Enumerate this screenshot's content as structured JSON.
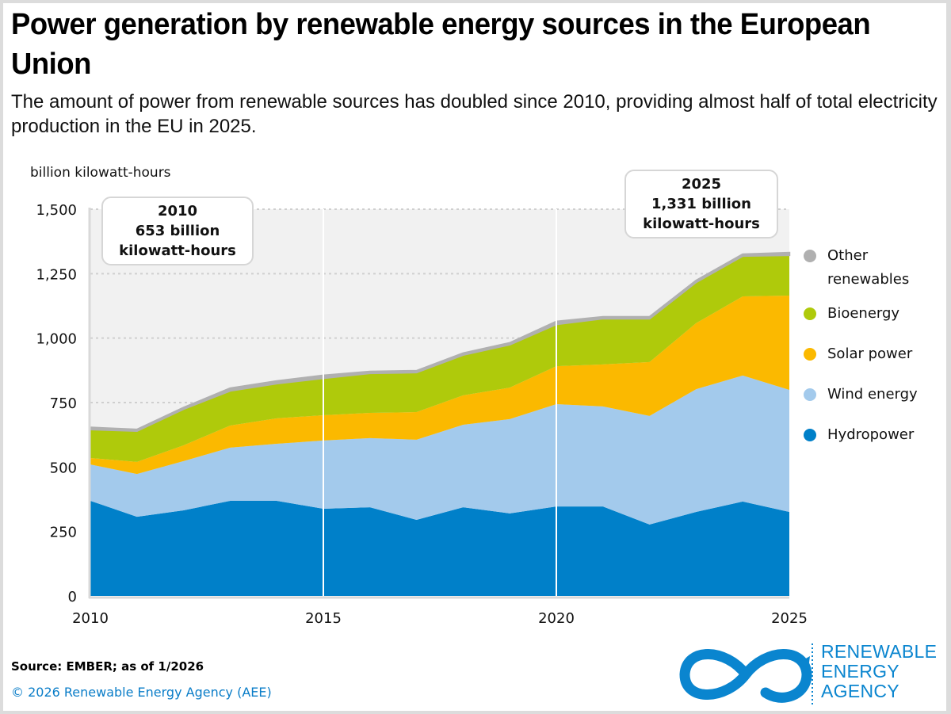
{
  "header": {
    "title": "Power generation by renewable energy sources in the European Union",
    "subtitle": "The amount of power from renewable sources has doubled since 2010, providing almost half of total electricity production in the EU in 2025."
  },
  "callouts": {
    "left": {
      "line1": "2010",
      "line2": "653 billion",
      "line3": "kilowatt-hours"
    },
    "right": {
      "line1": "2025",
      "line2": "1,331 billion",
      "line3": "kilowatt-hours"
    }
  },
  "legend": {
    "items": [
      {
        "label": "Other renewables",
        "color": "#b0b0b0"
      },
      {
        "label": "Bioenergy",
        "color": "#afca0b"
      },
      {
        "label": "Solar power",
        "color": "#fbb900"
      },
      {
        "label": "Wind energy",
        "color": "#a3caec"
      },
      {
        "label": "Hydropower",
        "color": "#0080c9"
      }
    ]
  },
  "footer": {
    "source": "Source: EMBER; as of 1/2026",
    "copyright": "© 2026 Renewable Energy Agency (AEE)"
  },
  "logo": {
    "line1": "RENEWABLE",
    "line2": "ENERGY",
    "line3": "AGENCY",
    "color": "#0a85cf"
  },
  "chart_data": {
    "type": "area",
    "stacked": true,
    "title": "Power generation by renewable energy sources in the European Union",
    "ylabel": "billion kilowatt-hours",
    "xlabel": "",
    "ylim": [
      0,
      1500
    ],
    "yticks": [
      0,
      250,
      500,
      750,
      1000,
      1250,
      1500
    ],
    "ytick_labels": [
      "0",
      "250",
      "500",
      "750",
      "1,000",
      "1,250",
      "1,500"
    ],
    "xticks": [
      2010,
      2015,
      2020,
      2025
    ],
    "xtick_labels": [
      "2010",
      "2015",
      "2020",
      "2025"
    ],
    "grid": "horizontal dotted",
    "legend_position": "right",
    "x": [
      2010,
      2011,
      2012,
      2013,
      2014,
      2015,
      2016,
      2017,
      2018,
      2019,
      2020,
      2021,
      2022,
      2023,
      2024,
      2025
    ],
    "series": [
      {
        "name": "Hydropower",
        "color": "#0080c9",
        "values": [
          369,
          307,
          332,
          369,
          369,
          338,
          344,
          295,
          344,
          320,
          347,
          347,
          277,
          326,
          366,
          326
        ]
      },
      {
        "name": "Wind energy",
        "color": "#a3caec",
        "values": [
          141,
          166,
          191,
          206,
          221,
          265,
          268,
          311,
          320,
          366,
          397,
          388,
          421,
          476,
          489,
          473
        ]
      },
      {
        "name": "Solar power",
        "color": "#fbb900",
        "values": [
          25,
          47,
          61,
          86,
          99,
          98,
          98,
          107,
          114,
          122,
          147,
          163,
          209,
          256,
          307,
          366
        ]
      },
      {
        "name": "Bioenergy",
        "color": "#afca0b",
        "values": [
          111,
          120,
          141,
          135,
          135,
          144,
          154,
          154,
          157,
          167,
          163,
          178,
          169,
          159,
          157,
          157
        ]
      },
      {
        "name": "Other renewables",
        "color": "#b0b0b0",
        "values": [
          7,
          5,
          5,
          9,
          9,
          10,
          6,
          6,
          6,
          6,
          10,
          6,
          6,
          6,
          6,
          9
        ]
      }
    ],
    "annotations": [
      {
        "x": 2010,
        "text": "2010 653 billion kilowatt-hours"
      },
      {
        "x": 2025,
        "text": "2025 1,331 billion kilowatt-hours"
      }
    ]
  }
}
